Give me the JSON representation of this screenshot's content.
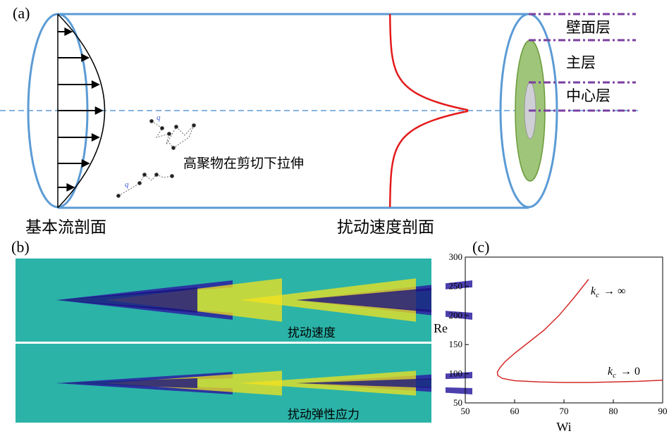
{
  "panel_a": {
    "label": "(a)",
    "layers": [
      "壁面层",
      "主层",
      "中心层"
    ],
    "polymer_text": "高聚物在剪切下拉伸",
    "q_labels": [
      "q",
      "q"
    ],
    "captions": [
      "基本流剖面",
      "扰动速度剖面"
    ]
  },
  "panel_b": {
    "label": "(b)",
    "captions": [
      "扰动速度",
      "扰动弹性应力"
    ]
  },
  "panel_c": {
    "label": "(c)"
  },
  "chart_data": {
    "type": "line",
    "xlabel": "Wi",
    "ylabel": "Re",
    "x": [
      75,
      72,
      69,
      66,
      63,
      60,
      58,
      57,
      56.5,
      56.6,
      57.5,
      60,
      65,
      70,
      75,
      80,
      85,
      90
    ],
    "values": [
      262,
      230,
      200,
      175,
      155,
      135,
      120,
      110,
      103,
      97,
      92,
      88,
      86,
      85,
      85,
      86,
      87,
      89
    ],
    "color": "#d42a2a",
    "xlim": [
      50,
      90
    ],
    "xticks": [
      50,
      60,
      70,
      80,
      90
    ],
    "ylim": [
      50,
      300
    ],
    "yticks": [
      50,
      100,
      150,
      200,
      250,
      300
    ],
    "annotations": [
      {
        "symbol": "k",
        "subscript": "c",
        "text": "→ ∞"
      },
      {
        "symbol": "k",
        "subscript": "c",
        "text": "→ 0"
      }
    ]
  }
}
